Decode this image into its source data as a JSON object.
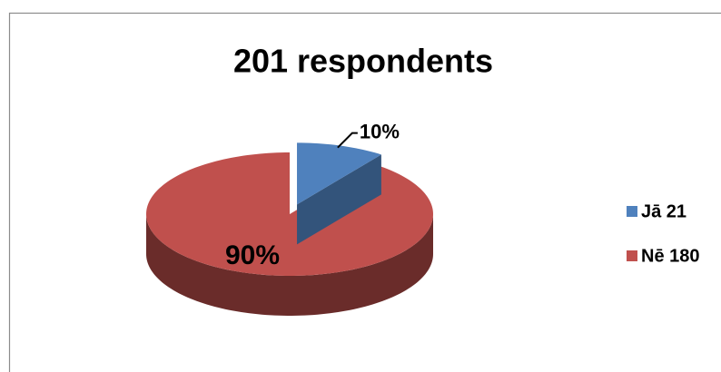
{
  "chart_data": {
    "type": "pie",
    "title": "201 respondents",
    "categories": [
      "Jā 21",
      "Nē 180"
    ],
    "values": [
      10,
      90
    ],
    "value_labels": [
      "10%",
      "90%"
    ],
    "colors": [
      "#4f81bd",
      "#c0504d"
    ],
    "legend": "right"
  }
}
